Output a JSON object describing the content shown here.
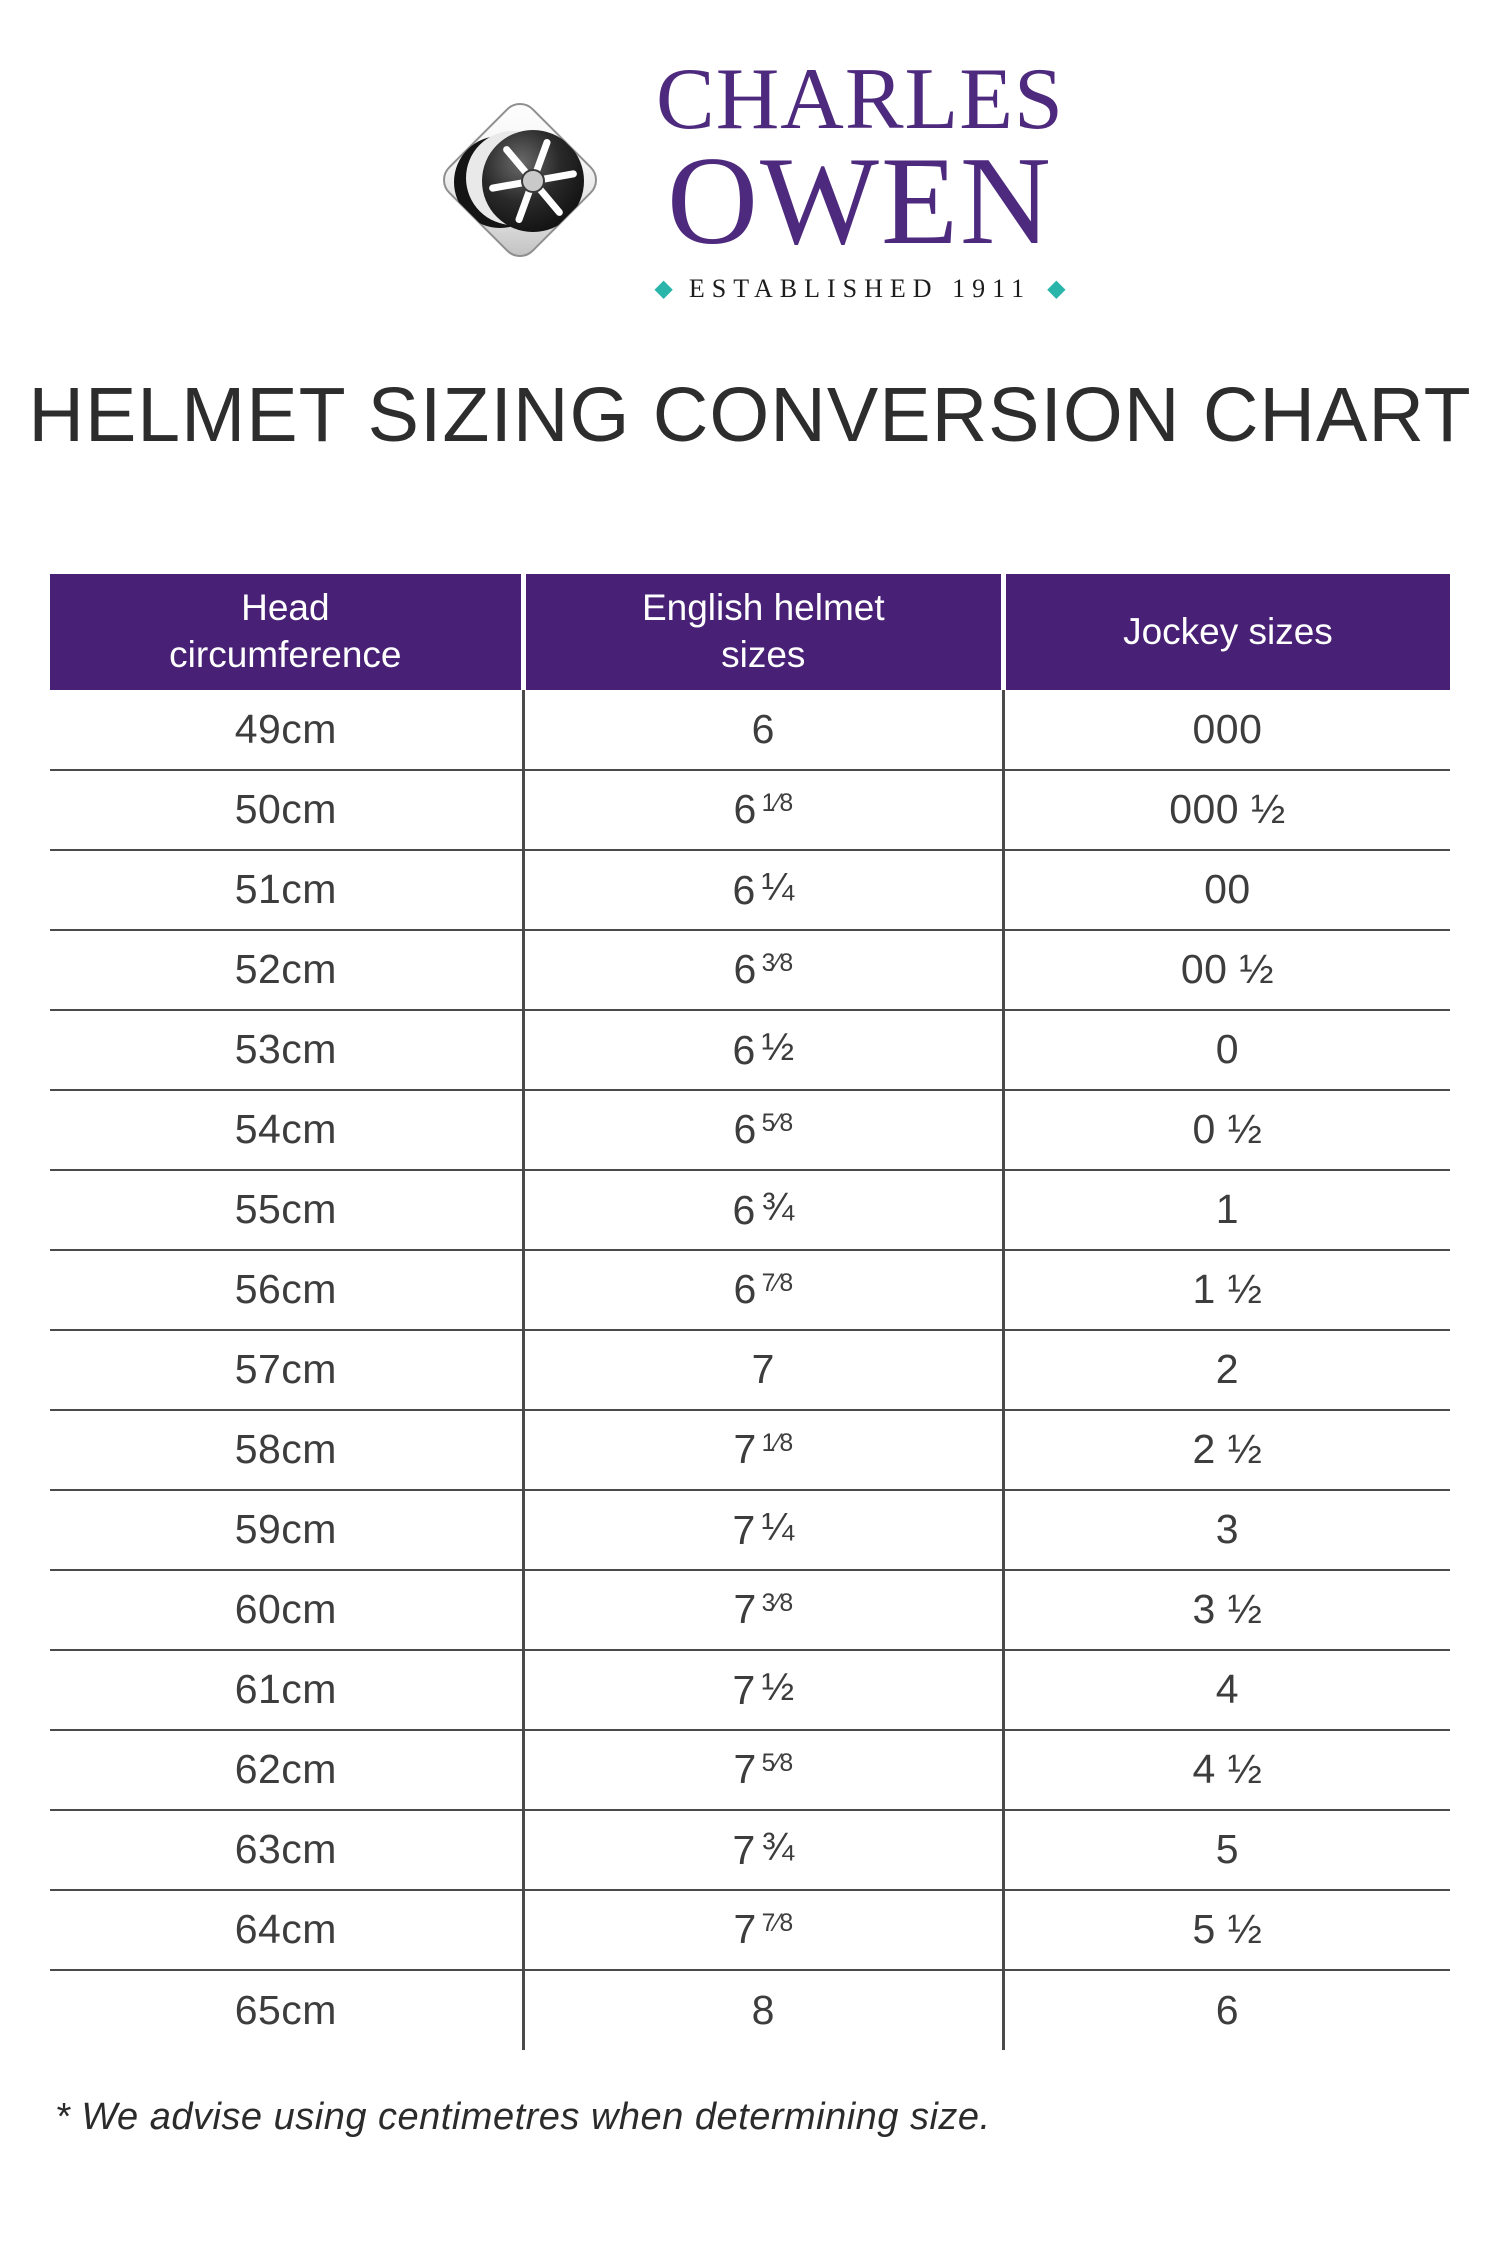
{
  "brand": {
    "name_line1": "CHARLES",
    "name_line2": "OWEN",
    "established": "ESTABLISHED 1911",
    "diamond_char": "◆",
    "purple": "#4e2a7e",
    "teal": "#2ab5ab"
  },
  "page_title": "HELMET SIZING CONVERSION CHART",
  "table": {
    "header_bg": "#482176",
    "line_color": "#4a4a4a",
    "columns": [
      {
        "label": "Head circumference",
        "lines": [
          "Head",
          "circumference"
        ]
      },
      {
        "label": "English helmet sizes",
        "lines": [
          "English helmet",
          "sizes"
        ]
      },
      {
        "label": "Jockey sizes",
        "lines": [
          "Jockey sizes"
        ]
      }
    ],
    "rows": [
      {
        "head": "49cm",
        "english_whole": "6",
        "english_frac": "",
        "jockey": "000"
      },
      {
        "head": "50cm",
        "english_whole": "6",
        "english_frac": "1/8",
        "jockey": "000 ½"
      },
      {
        "head": "51cm",
        "english_whole": "6",
        "english_frac": "1/4",
        "jockey": "00"
      },
      {
        "head": "52cm",
        "english_whole": "6",
        "english_frac": "3/8",
        "jockey": "00 ½"
      },
      {
        "head": "53cm",
        "english_whole": "6",
        "english_frac": "1/2",
        "jockey": "0"
      },
      {
        "head": "54cm",
        "english_whole": "6",
        "english_frac": "5/8",
        "jockey": "0  ½"
      },
      {
        "head": "55cm",
        "english_whole": "6",
        "english_frac": "3/4",
        "jockey": "1"
      },
      {
        "head": "56cm",
        "english_whole": "6",
        "english_frac": "7/8",
        "jockey": "1 ½"
      },
      {
        "head": "57cm",
        "english_whole": "7",
        "english_frac": "",
        "jockey": "2"
      },
      {
        "head": "58cm",
        "english_whole": "7",
        "english_frac": "1/8",
        "jockey": "2 ½"
      },
      {
        "head": "59cm",
        "english_whole": "7",
        "english_frac": "1/4",
        "jockey": "3"
      },
      {
        "head": "60cm",
        "english_whole": "7",
        "english_frac": "3/8",
        "jockey": "3 ½"
      },
      {
        "head": "61cm",
        "english_whole": "7",
        "english_frac": "1/2",
        "jockey": "4"
      },
      {
        "head": "62cm",
        "english_whole": "7",
        "english_frac": "5/8",
        "jockey": "4 ½"
      },
      {
        "head": "63cm",
        "english_whole": "7",
        "english_frac": "3/4",
        "jockey": "5"
      },
      {
        "head": "64cm",
        "english_whole": "7",
        "english_frac": "7/8",
        "jockey": "5 ½"
      },
      {
        "head": "65cm",
        "english_whole": "8",
        "english_frac": "",
        "jockey": "6"
      }
    ]
  },
  "footnote": "* We advise using centimetres when determining size."
}
